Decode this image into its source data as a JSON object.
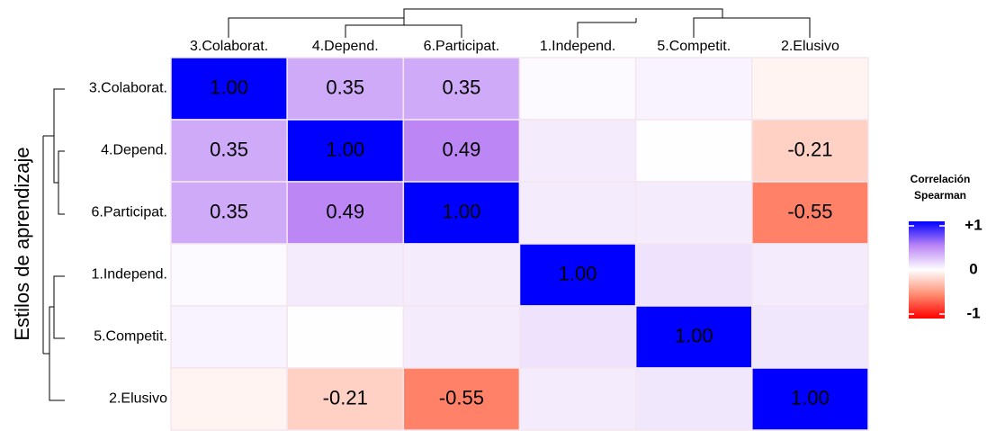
{
  "chart_data": {
    "type": "heatmap",
    "y_label": "Estilos de aprendizaje",
    "rows": [
      "3.Colaborat.",
      "4.Depend.",
      "6.Participat.",
      "1.Independ.",
      "5.Competit.",
      "2.Elusivo"
    ],
    "columns": [
      "3.Colaborat.",
      "4.Depend.",
      "6.Participat.",
      "1.Independ.",
      "5.Competit.",
      "2.Elusivo"
    ],
    "values": [
      [
        1.0,
        0.35,
        0.35,
        0.02,
        0.05,
        -0.05
      ],
      [
        0.35,
        1.0,
        0.49,
        0.08,
        0.01,
        -0.21
      ],
      [
        0.35,
        0.49,
        1.0,
        0.08,
        0.08,
        -0.55
      ],
      [
        0.02,
        0.08,
        0.08,
        1.0,
        0.12,
        0.08
      ],
      [
        0.05,
        0.01,
        0.08,
        0.12,
        1.0,
        0.1
      ],
      [
        -0.05,
        -0.21,
        -0.55,
        0.08,
        0.1,
        1.0
      ]
    ],
    "value_labels": [
      [
        "1.00",
        "0.35",
        "0.35",
        null,
        null,
        null
      ],
      [
        "0.35",
        "1.00",
        "0.49",
        null,
        null,
        "-0.21"
      ],
      [
        "0.35",
        "0.49",
        "1.00",
        null,
        null,
        "-0.55"
      ],
      [
        null,
        null,
        null,
        "1.00",
        null,
        null
      ],
      [
        null,
        null,
        null,
        null,
        "1.00",
        null
      ],
      [
        null,
        "-0.21",
        "-0.55",
        null,
        null,
        "1.00"
      ]
    ],
    "legend_title": [
      "Correlación",
      "Spearman"
    ],
    "colorscale": [
      [
        -1,
        "#ff0000"
      ],
      [
        -0.5,
        "#ff8f73"
      ],
      [
        0,
        "#ffffff"
      ],
      [
        0.5,
        "#bb85f5"
      ],
      [
        1,
        "#0000ff"
      ]
    ],
    "clim": [
      -1,
      1
    ],
    "cticks": [
      {
        "value": 1,
        "label": "+1"
      },
      0,
      {
        "value": -1,
        "label": "-1"
      }
    ]
  }
}
